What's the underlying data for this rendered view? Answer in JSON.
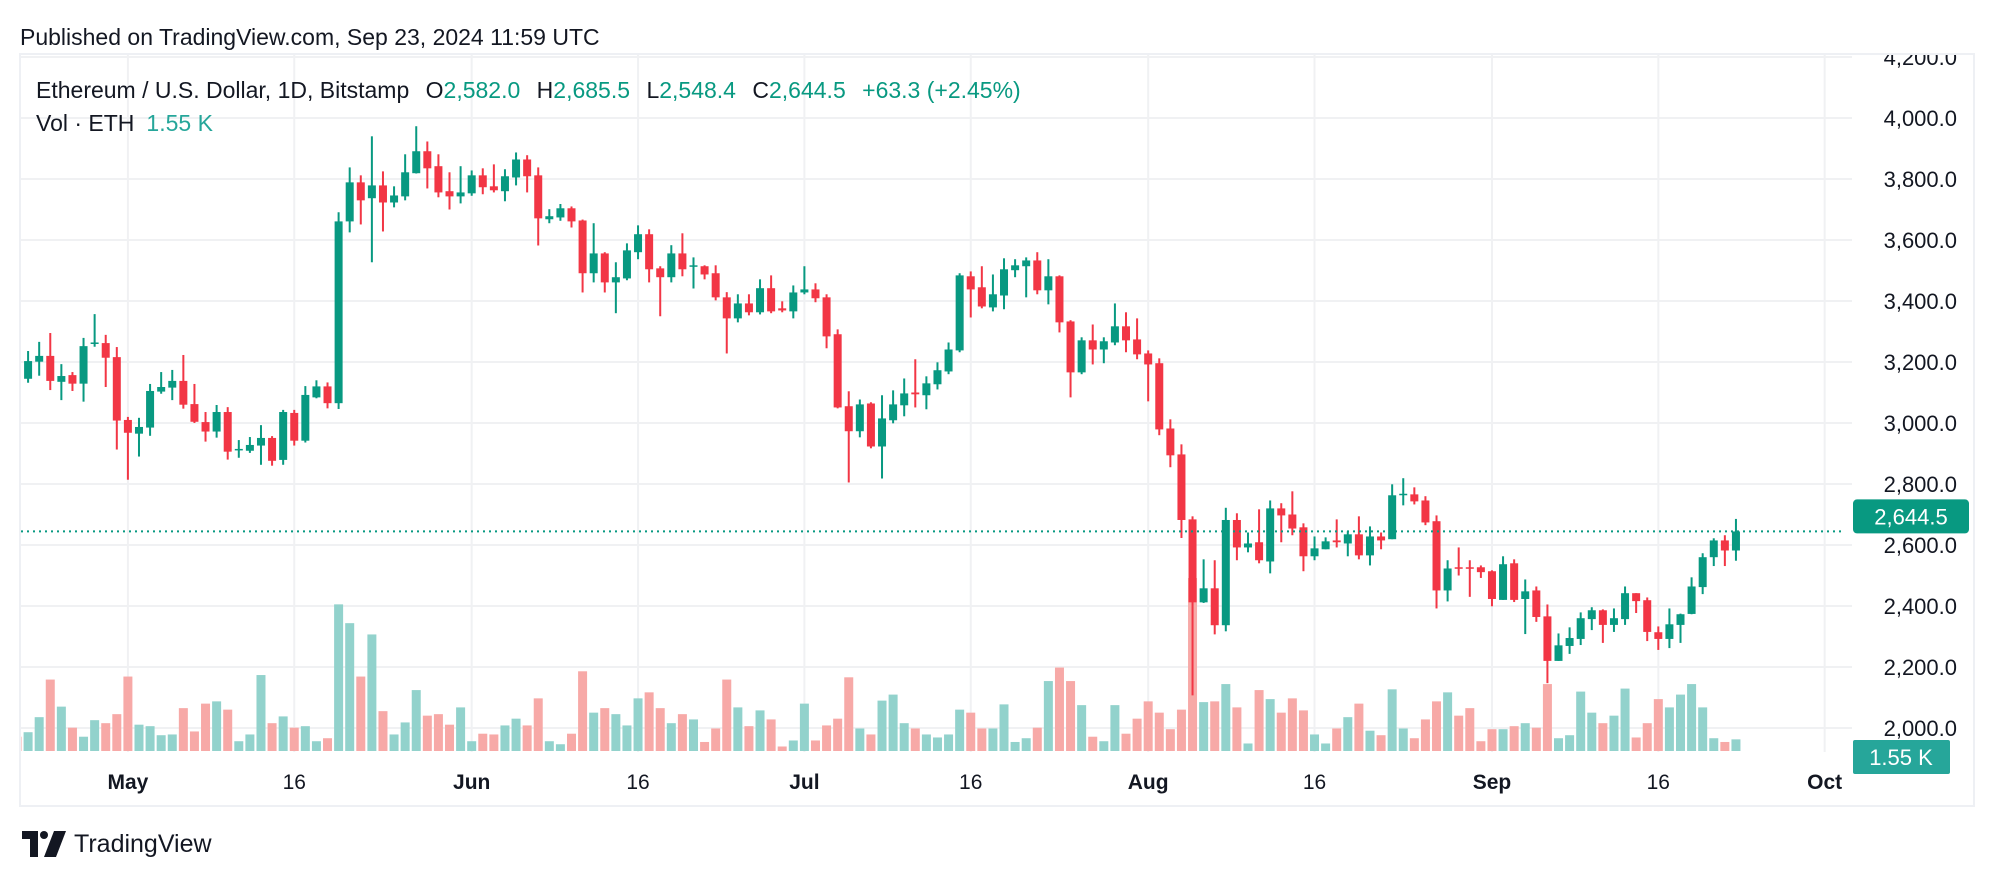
{
  "header": {
    "published": "Published on TradingView.com, Sep 23, 2024 11:59 UTC"
  },
  "legend": {
    "symbol": "Ethereum / U.S. Dollar, 1D, Bitstamp",
    "o_label": "O",
    "open": "2,582.0",
    "h_label": "H",
    "high": "2,685.5",
    "l_label": "L",
    "low": "2,548.4",
    "c_label": "C",
    "close": "2,644.5",
    "change": "+63.3 (+2.45%)"
  },
  "volume_legend": {
    "label": "Vol · ETH",
    "value": "1.55 K"
  },
  "last_price_label": "2,644.5",
  "last_volume_label": "1.55 K",
  "footer": {
    "logo_text": "TradingView"
  },
  "colors": {
    "up": "#089981",
    "down": "#f23645",
    "volume_up": "#92d2cc",
    "volume_down": "#f7a9a7",
    "grid": "#f0f1f3",
    "last_price_line": "#089981",
    "volume_label_bg": "#26a69a"
  },
  "chart_data": {
    "type": "candlestick",
    "symbol": "Ethereum / U.S. Dollar, 1D, Bitstamp",
    "fields": [
      "date",
      "open",
      "high",
      "low",
      "close",
      "volume_k"
    ],
    "y_axis": {
      "ticks": [
        4200,
        4000,
        3800,
        3600,
        3400,
        3200,
        3000,
        2800,
        2600,
        2400,
        2200,
        2000
      ],
      "position": "right",
      "ylim": [
        1990,
        4210
      ]
    },
    "x_axis": {
      "ticks": [
        {
          "date": "2024-05-01",
          "label": "May",
          "major": true
        },
        {
          "date": "2024-05-16",
          "label": "16",
          "major": false
        },
        {
          "date": "2024-06-01",
          "label": "Jun",
          "major": true
        },
        {
          "date": "2024-06-16",
          "label": "16",
          "major": false
        },
        {
          "date": "2024-07-01",
          "label": "Jul",
          "major": true
        },
        {
          "date": "2024-07-16",
          "label": "16",
          "major": false
        },
        {
          "date": "2024-08-01",
          "label": "Aug",
          "major": true
        },
        {
          "date": "2024-08-16",
          "label": "16",
          "major": false
        },
        {
          "date": "2024-09-01",
          "label": "Sep",
          "major": true
        },
        {
          "date": "2024-09-16",
          "label": "16",
          "major": false
        },
        {
          "date": "2024-10-01",
          "label": "Oct",
          "major": true
        }
      ]
    },
    "grid": true,
    "last_price": 2644.5,
    "candles": [
      [
        "2024-04-21",
        3160,
        3170,
        3140,
        3150,
        1.9
      ],
      [
        "2024-04-22",
        3145,
        3236,
        3132,
        3203,
        2.5
      ],
      [
        "2024-04-23",
        3201,
        3266,
        3155,
        3220,
        4.5
      ],
      [
        "2024-04-24",
        3220,
        3295,
        3108,
        3138,
        9.5
      ],
      [
        "2024-04-25",
        3135,
        3193,
        3075,
        3154,
        5.9
      ],
      [
        "2024-04-26",
        3157,
        3167,
        3105,
        3129,
        3.1
      ],
      [
        "2024-04-27",
        3129,
        3279,
        3070,
        3252,
        1.9
      ],
      [
        "2024-04-28",
        3260,
        3357,
        3250,
        3264,
        4.1
      ],
      [
        "2024-04-29",
        3262,
        3289,
        3118,
        3214,
        3.7
      ],
      [
        "2024-04-30",
        3216,
        3249,
        2913,
        3008,
        4.9
      ],
      [
        "2024-05-01",
        3010,
        3020,
        2814,
        2968,
        9.9
      ],
      [
        "2024-05-02",
        2965,
        3017,
        2890,
        2987,
        3.5
      ],
      [
        "2024-05-03",
        2985,
        3128,
        2958,
        3105,
        3.3
      ],
      [
        "2024-05-04",
        3103,
        3167,
        3096,
        3118,
        2.1
      ],
      [
        "2024-05-05",
        3116,
        3174,
        3075,
        3138,
        2.2
      ],
      [
        "2024-05-06",
        3138,
        3223,
        3047,
        3060,
        5.7
      ],
      [
        "2024-05-07",
        3062,
        3128,
        3000,
        3004,
        2.6
      ],
      [
        "2024-05-08",
        3003,
        3036,
        2939,
        2972,
        6.3
      ],
      [
        "2024-05-09",
        2972,
        3059,
        2952,
        3036,
        6.6
      ],
      [
        "2024-05-10",
        3036,
        3052,
        2880,
        2906,
        5.5
      ],
      [
        "2024-05-11",
        2911,
        2944,
        2886,
        2915,
        1.3
      ],
      [
        "2024-05-12",
        2909,
        2954,
        2902,
        2928,
        2.2
      ],
      [
        "2024-05-13",
        2926,
        2993,
        2863,
        2951,
        10.1
      ],
      [
        "2024-05-14",
        2951,
        2957,
        2860,
        2876,
        3.7
      ],
      [
        "2024-05-15",
        2879,
        3043,
        2863,
        3036,
        4.6
      ],
      [
        "2024-05-16",
        3033,
        3043,
        2926,
        2942,
        3.1
      ],
      [
        "2024-05-17",
        2942,
        3121,
        2936,
        3092,
        3.3
      ],
      [
        "2024-05-18",
        3084,
        3140,
        3081,
        3120,
        1.3
      ],
      [
        "2024-05-19",
        3120,
        3133,
        3048,
        3065,
        1.7
      ],
      [
        "2024-05-20",
        3065,
        3691,
        3046,
        3661,
        19.5
      ],
      [
        "2024-05-21",
        3661,
        3838,
        3625,
        3789,
        17.0
      ],
      [
        "2024-05-22",
        3789,
        3812,
        3651,
        3730,
        9.9
      ],
      [
        "2024-05-23",
        3737,
        3940,
        3527,
        3779,
        15.5
      ],
      [
        "2024-05-24",
        3779,
        3825,
        3628,
        3723,
        5.3
      ],
      [
        "2024-05-25",
        3723,
        3776,
        3707,
        3746,
        2.2
      ],
      [
        "2024-05-26",
        3743,
        3881,
        3730,
        3822,
        3.8
      ],
      [
        "2024-05-27",
        3819,
        3973,
        3818,
        3891,
        8.1
      ],
      [
        "2024-05-28",
        3891,
        3923,
        3769,
        3835,
        4.7
      ],
      [
        "2024-05-29",
        3842,
        3881,
        3740,
        3756,
        4.9
      ],
      [
        "2024-05-30",
        3760,
        3822,
        3700,
        3743,
        3.5
      ],
      [
        "2024-05-31",
        3743,
        3842,
        3720,
        3756,
        5.8
      ],
      [
        "2024-06-01",
        3753,
        3828,
        3745,
        3812,
        1.3
      ],
      [
        "2024-06-02",
        3812,
        3835,
        3750,
        3773,
        2.3
      ],
      [
        "2024-06-03",
        3776,
        3848,
        3756,
        3763,
        2.2
      ],
      [
        "2024-06-04",
        3760,
        3832,
        3727,
        3809,
        3.4
      ],
      [
        "2024-06-05",
        3805,
        3887,
        3779,
        3864,
        4.3
      ],
      [
        "2024-06-06",
        3864,
        3878,
        3756,
        3809,
        3.4
      ],
      [
        "2024-06-07",
        3812,
        3838,
        3582,
        3671,
        7.0
      ],
      [
        "2024-06-08",
        3668,
        3701,
        3655,
        3678,
        1.3
      ],
      [
        "2024-06-09",
        3674,
        3718,
        3663,
        3704,
        0.9
      ],
      [
        "2024-06-10",
        3704,
        3710,
        3641,
        3661,
        2.3
      ],
      [
        "2024-06-11",
        3664,
        3667,
        3428,
        3491,
        10.6
      ],
      [
        "2024-06-12",
        3491,
        3655,
        3461,
        3556,
        5.1
      ],
      [
        "2024-06-13",
        3556,
        3560,
        3428,
        3461,
        5.7
      ],
      [
        "2024-06-14",
        3461,
        3527,
        3360,
        3478,
        4.9
      ],
      [
        "2024-06-15",
        3474,
        3589,
        3468,
        3566,
        3.4
      ],
      [
        "2024-06-16",
        3560,
        3648,
        3537,
        3619,
        7.0
      ],
      [
        "2024-06-17",
        3619,
        3635,
        3461,
        3504,
        7.8
      ],
      [
        "2024-06-18",
        3507,
        3514,
        3350,
        3478,
        5.7
      ],
      [
        "2024-06-19",
        3478,
        3583,
        3461,
        3556,
        3.7
      ],
      [
        "2024-06-20",
        3556,
        3622,
        3481,
        3504,
        4.9
      ],
      [
        "2024-06-21",
        3513,
        3543,
        3441,
        3517,
        4.2
      ],
      [
        "2024-06-22",
        3514,
        3517,
        3471,
        3487,
        1.2
      ],
      [
        "2024-06-23",
        3491,
        3517,
        3402,
        3412,
        3.0
      ],
      [
        "2024-06-24",
        3412,
        3429,
        3228,
        3343,
        9.5
      ],
      [
        "2024-06-25",
        3343,
        3422,
        3330,
        3392,
        5.8
      ],
      [
        "2024-06-26",
        3392,
        3422,
        3353,
        3363,
        3.3
      ],
      [
        "2024-06-27",
        3363,
        3471,
        3356,
        3442,
        5.4
      ],
      [
        "2024-06-28",
        3442,
        3484,
        3360,
        3366,
        4.2
      ],
      [
        "2024-06-29",
        3376,
        3399,
        3363,
        3369,
        0.6
      ],
      [
        "2024-06-30",
        3366,
        3451,
        3343,
        3428,
        1.4
      ],
      [
        "2024-07-01",
        3428,
        3514,
        3422,
        3438,
        6.3
      ],
      [
        "2024-07-02",
        3438,
        3458,
        3396,
        3409,
        1.4
      ],
      [
        "2024-07-03",
        3412,
        3422,
        3245,
        3284,
        3.4
      ],
      [
        "2024-07-04",
        3291,
        3307,
        3048,
        3051,
        4.3
      ],
      [
        "2024-07-05",
        3055,
        3104,
        2805,
        2973,
        9.8
      ],
      [
        "2024-07-06",
        2973,
        3077,
        2953,
        3061,
        3.0
      ],
      [
        "2024-07-07",
        3064,
        3068,
        2917,
        2923,
        2.2
      ],
      [
        "2024-07-08",
        2923,
        3091,
        2818,
        3015,
        6.7
      ],
      [
        "2024-07-09",
        3009,
        3107,
        2999,
        3061,
        7.5
      ],
      [
        "2024-07-10",
        3058,
        3146,
        3022,
        3097,
        3.7
      ],
      [
        "2024-07-11",
        3100,
        3209,
        3051,
        3094,
        3.0
      ],
      [
        "2024-07-12",
        3091,
        3153,
        3045,
        3130,
        2.2
      ],
      [
        "2024-07-13",
        3127,
        3199,
        3110,
        3173,
        1.8
      ],
      [
        "2024-07-14",
        3169,
        3264,
        3160,
        3241,
        2.2
      ],
      [
        "2024-07-15",
        3238,
        3491,
        3232,
        3484,
        5.5
      ],
      [
        "2024-07-16",
        3481,
        3497,
        3346,
        3438,
        5.1
      ],
      [
        "2024-07-17",
        3445,
        3514,
        3376,
        3382,
        3.0
      ],
      [
        "2024-07-18",
        3379,
        3487,
        3366,
        3422,
        3.0
      ],
      [
        "2024-07-19",
        3418,
        3540,
        3373,
        3504,
        6.2
      ],
      [
        "2024-07-20",
        3501,
        3537,
        3478,
        3517,
        1.2
      ],
      [
        "2024-07-21",
        3514,
        3543,
        3412,
        3533,
        1.7
      ],
      [
        "2024-07-22",
        3533,
        3560,
        3422,
        3435,
        3.1
      ],
      [
        "2024-07-23",
        3435,
        3537,
        3389,
        3481,
        9.3
      ],
      [
        "2024-07-24",
        3481,
        3484,
        3297,
        3330,
        11.1
      ],
      [
        "2024-07-25",
        3333,
        3337,
        3084,
        3166,
        9.3
      ],
      [
        "2024-07-26",
        3166,
        3281,
        3160,
        3271,
        6.1
      ],
      [
        "2024-07-27",
        3271,
        3323,
        3192,
        3241,
        1.9
      ],
      [
        "2024-07-28",
        3241,
        3281,
        3196,
        3268,
        1.3
      ],
      [
        "2024-07-29",
        3264,
        3392,
        3255,
        3317,
        6.1
      ],
      [
        "2024-07-30",
        3317,
        3363,
        3232,
        3271,
        2.3
      ],
      [
        "2024-07-31",
        3274,
        3343,
        3209,
        3225,
        4.3
      ],
      [
        "2024-08-01",
        3228,
        3238,
        3071,
        3192,
        6.6
      ],
      [
        "2024-08-02",
        3196,
        3212,
        2960,
        2979,
        5.1
      ],
      [
        "2024-08-03",
        2982,
        3012,
        2855,
        2894,
        2.9
      ],
      [
        "2024-08-04",
        2897,
        2930,
        2623,
        2682,
        5.5
      ],
      [
        "2024-08-05",
        2684,
        2694,
        2107,
        2412,
        23.0
      ],
      [
        "2024-08-06",
        2412,
        2553,
        2410,
        2458,
        6.5
      ],
      [
        "2024-08-07",
        2458,
        2550,
        2307,
        2337,
        6.6
      ],
      [
        "2024-08-08",
        2337,
        2722,
        2317,
        2682,
        8.9
      ],
      [
        "2024-08-09",
        2682,
        2704,
        2550,
        2592,
        5.8
      ],
      [
        "2024-08-10",
        2592,
        2641,
        2576,
        2605,
        1.0
      ],
      [
        "2024-08-11",
        2609,
        2717,
        2540,
        2550,
        8.1
      ],
      [
        "2024-08-12",
        2546,
        2746,
        2507,
        2720,
        6.9
      ],
      [
        "2024-08-13",
        2720,
        2737,
        2609,
        2697,
        5.1
      ],
      [
        "2024-08-14",
        2700,
        2776,
        2632,
        2654,
        7.0
      ],
      [
        "2024-08-15",
        2658,
        2671,
        2514,
        2563,
        5.4
      ],
      [
        "2024-08-16",
        2563,
        2628,
        2550,
        2589,
        2.2
      ],
      [
        "2024-08-17",
        2586,
        2625,
        2586,
        2612,
        1.0
      ],
      [
        "2024-08-18",
        2615,
        2684,
        2592,
        2609,
        3.0
      ],
      [
        "2024-08-19",
        2605,
        2645,
        2563,
        2635,
        4.5
      ],
      [
        "2024-08-20",
        2635,
        2694,
        2553,
        2566,
        6.3
      ],
      [
        "2024-08-21",
        2566,
        2661,
        2533,
        2628,
        2.7
      ],
      [
        "2024-08-22",
        2628,
        2641,
        2586,
        2615,
        2.1
      ],
      [
        "2024-08-23",
        2619,
        2799,
        2619,
        2763,
        8.2
      ],
      [
        "2024-08-24",
        2765,
        2819,
        2730,
        2768,
        3.0
      ],
      [
        "2024-08-25",
        2766,
        2789,
        2733,
        2743,
        1.7
      ],
      [
        "2024-08-26",
        2746,
        2760,
        2665,
        2674,
        4.2
      ],
      [
        "2024-08-27",
        2678,
        2697,
        2392,
        2451,
        6.6
      ],
      [
        "2024-08-28",
        2451,
        2550,
        2415,
        2523,
        7.8
      ],
      [
        "2024-08-29",
        2527,
        2592,
        2500,
        2522,
        4.7
      ],
      [
        "2024-08-30",
        2527,
        2550,
        2430,
        2522,
        5.7
      ],
      [
        "2024-08-31",
        2527,
        2533,
        2492,
        2511,
        1.3
      ],
      [
        "2024-09-01",
        2514,
        2517,
        2399,
        2423,
        2.9
      ],
      [
        "2024-09-02",
        2420,
        2563,
        2420,
        2537,
        2.9
      ],
      [
        "2024-09-03",
        2540,
        2553,
        2413,
        2420,
        3.3
      ],
      [
        "2024-09-04",
        2423,
        2487,
        2308,
        2448,
        3.7
      ],
      [
        "2024-09-05",
        2451,
        2464,
        2348,
        2364,
        3.1
      ],
      [
        "2024-09-06",
        2366,
        2405,
        2147,
        2220,
        8.9
      ],
      [
        "2024-09-07",
        2220,
        2310,
        2220,
        2271,
        1.7
      ],
      [
        "2024-09-08",
        2269,
        2330,
        2243,
        2295,
        2.1
      ],
      [
        "2024-09-09",
        2292,
        2379,
        2272,
        2360,
        7.9
      ],
      [
        "2024-09-10",
        2357,
        2396,
        2321,
        2386,
        5.1
      ],
      [
        "2024-09-11",
        2386,
        2389,
        2279,
        2338,
        3.7
      ],
      [
        "2024-09-12",
        2338,
        2392,
        2315,
        2360,
        4.7
      ],
      [
        "2024-09-13",
        2357,
        2464,
        2338,
        2442,
        8.3
      ],
      [
        "2024-09-14",
        2442,
        2442,
        2377,
        2416,
        1.8
      ],
      [
        "2024-09-15",
        2419,
        2428,
        2285,
        2315,
        3.7
      ],
      [
        "2024-09-16",
        2314,
        2333,
        2256,
        2292,
        6.9
      ],
      [
        "2024-09-17",
        2292,
        2392,
        2262,
        2340,
        5.8
      ],
      [
        "2024-09-18",
        2338,
        2375,
        2279,
        2373,
        7.5
      ],
      [
        "2024-09-19",
        2374,
        2494,
        2373,
        2464,
        8.9
      ],
      [
        "2024-09-20",
        2462,
        2573,
        2439,
        2560,
        5.8
      ],
      [
        "2024-09-21",
        2560,
        2622,
        2531,
        2615,
        1.7
      ],
      [
        "2024-09-22",
        2615,
        2632,
        2531,
        2582,
        1.2
      ],
      [
        "2024-09-23",
        2582,
        2685.5,
        2548.4,
        2644.5,
        1.55
      ]
    ]
  }
}
